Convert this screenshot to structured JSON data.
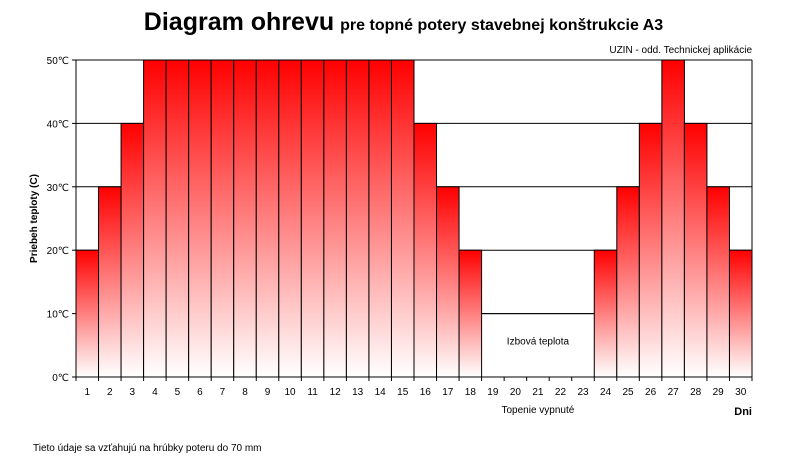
{
  "title": "Diagram ohrevu",
  "subtitle": "pre topné potery stavebnej konštrukcie A3",
  "source": "UZIN - odd. Technickej aplikácie",
  "footnote": "Tieto údaje sa vzťahujú na hrúbky poteru do 70 mm",
  "chart_data": {
    "type": "bar",
    "title": "Diagram ohrevu",
    "subtitle": "pre topné potery stavebnej konštrukcie A3",
    "xlabel": "Dni",
    "ylabel": "Priebeh teploty (C)",
    "categories": [
      "1",
      "2",
      "3",
      "4",
      "5",
      "6",
      "7",
      "8",
      "9",
      "10",
      "11",
      "12",
      "13",
      "14",
      "15",
      "16",
      "17",
      "18",
      "19",
      "20",
      "21",
      "22",
      "23",
      "24",
      "25",
      "26",
      "27",
      "28",
      "29",
      "30"
    ],
    "values": [
      20,
      30,
      40,
      50,
      50,
      50,
      50,
      50,
      50,
      50,
      50,
      50,
      50,
      50,
      50,
      40,
      30,
      20,
      10,
      10,
      10,
      10,
      10,
      20,
      30,
      40,
      50,
      40,
      30,
      20
    ],
    "yticks": [
      "0℃",
      "10℃",
      "20℃",
      "30℃",
      "40℃",
      "50℃"
    ],
    "ylim": [
      0,
      50
    ],
    "grid": true,
    "bar_colors": {
      "top": "#ff0000",
      "bottom": "#ffffff"
    },
    "annotations": {
      "room_temperature": {
        "text": "Izbová teplota",
        "days": [
          19,
          23
        ],
        "value": 10
      },
      "heating_off": {
        "text": "Topenie vypnuté",
        "days": [
          19,
          23
        ]
      }
    }
  }
}
